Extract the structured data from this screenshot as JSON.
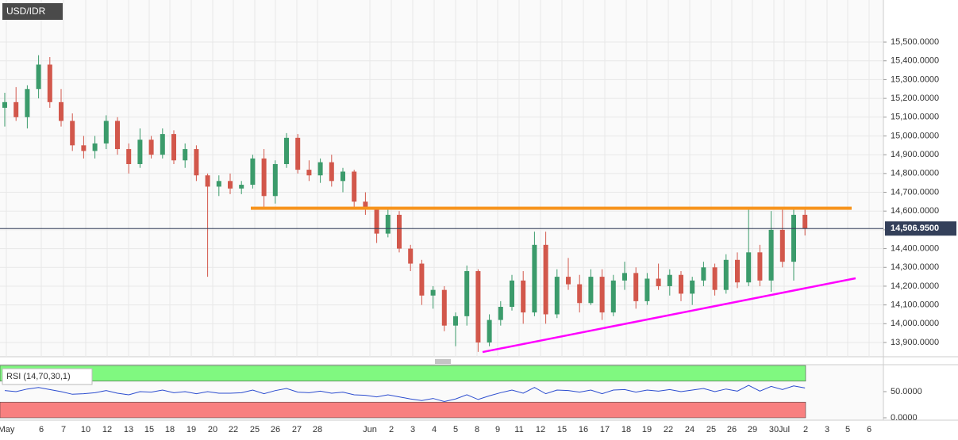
{
  "chart_data": {
    "type": "candlestick",
    "title": "USD/IDR",
    "open": [
      15150,
      15180,
      15100,
      15250,
      15380,
      15180,
      15080,
      14950,
      14920,
      14960,
      15080,
      14930,
      14850,
      14980,
      14900,
      15010,
      14870,
      14930,
      14790,
      14730,
      14760,
      14720,
      14740,
      14880,
      14680,
      14850,
      14990,
      14820,
      14790,
      14860,
      14760,
      14810,
      14650,
      14610,
      14480,
      14580,
      14400,
      14320,
      14150,
      14180,
      13990,
      14040,
      14280,
      13900,
      14020,
      14090,
      14230,
      14060,
      14420,
      14050,
      14250,
      14210,
      14110,
      14250,
      14060,
      14230,
      14270,
      14120,
      14240,
      14200,
      14260,
      14160,
      14230,
      14300,
      14180,
      14340,
      14220,
      14380,
      14230,
      14500,
      14330,
      14580
    ],
    "high": [
      15230,
      15260,
      15270,
      15430,
      15420,
      15250,
      15120,
      15000,
      15000,
      15110,
      15100,
      14960,
      15040,
      15000,
      15040,
      15030,
      14960,
      14950,
      14800,
      14790,
      14800,
      14760,
      14900,
      14930,
      14870,
      15015,
      15010,
      14870,
      14880,
      14900,
      14830,
      14820,
      14700,
      14620,
      14610,
      14600,
      14420,
      14340,
      14200,
      14200,
      14060,
      14310,
      14290,
      14050,
      14120,
      14260,
      14280,
      14490,
      14490,
      14290,
      14350,
      14260,
      14290,
      14290,
      14260,
      14330,
      14300,
      14270,
      14320,
      14290,
      14280,
      14250,
      14330,
      14320,
      14370,
      14380,
      14620,
      14420,
      14600,
      14620,
      14610,
      14610
    ],
    "low": [
      15050,
      15080,
      15040,
      15200,
      15150,
      15050,
      14920,
      14880,
      14880,
      14930,
      14900,
      14800,
      14830,
      14880,
      14880,
      14850,
      14830,
      14760,
      14250,
      14680,
      14690,
      14690,
      14720,
      14620,
      14640,
      14830,
      14800,
      14760,
      14750,
      14730,
      14700,
      14620,
      14580,
      14430,
      14460,
      14380,
      14280,
      14100,
      14080,
      13960,
      13880,
      13990,
      13850,
      13880,
      13990,
      14070,
      14000,
      14040,
      14000,
      14030,
      14180,
      14060,
      14100,
      14020,
      14040,
      14180,
      14080,
      14100,
      14180,
      14150,
      14120,
      14100,
      14200,
      14150,
      14160,
      14190,
      14200,
      14200,
      14170,
      14300,
      14230,
      14470
    ],
    "close": [
      15180,
      15100,
      15250,
      15380,
      15180,
      15080,
      14950,
      14920,
      14960,
      15080,
      14930,
      14850,
      14980,
      14900,
      15010,
      14870,
      14930,
      14790,
      14730,
      14760,
      14720,
      14740,
      14880,
      14680,
      14850,
      14990,
      14820,
      14790,
      14860,
      14760,
      14810,
      14650,
      14610,
      14480,
      14580,
      14400,
      14320,
      14150,
      14180,
      13990,
      14040,
      14280,
      13900,
      14020,
      14090,
      14230,
      14060,
      14420,
      14050,
      14250,
      14210,
      14110,
      14250,
      14060,
      14230,
      14270,
      14120,
      14240,
      14200,
      14260,
      14160,
      14230,
      14300,
      14180,
      14340,
      14220,
      14380,
      14230,
      14500,
      14330,
      14580,
      14506.95
    ],
    "up_color": "#3b9b6b",
    "down_color": "#d2574b",
    "ylim": [
      13824,
      15724
    ],
    "yticks": [
      {
        "value": 13900,
        "label": "13,900.0000"
      },
      {
        "value": 14000,
        "label": "14,000.0000"
      },
      {
        "value": 14100,
        "label": "14,100.0000"
      },
      {
        "value": 14200,
        "label": "14,200.0000"
      },
      {
        "value": 14300,
        "label": "14,300.0000"
      },
      {
        "value": 14400,
        "label": "14,400.0000"
      },
      {
        "value": 14500,
        "label": "14,500.0000"
      },
      {
        "value": 14600,
        "label": "14,600.0000"
      },
      {
        "value": 14700,
        "label": "14,700.0000"
      },
      {
        "value": 14800,
        "label": "14,800.0000"
      },
      {
        "value": 14900,
        "label": "14,900.0000"
      },
      {
        "value": 15000,
        "label": "15,000.0000"
      },
      {
        "value": 15100,
        "label": "15,100.0000"
      },
      {
        "value": 15200,
        "label": "15,200.0000"
      },
      {
        "value": 15300,
        "label": "15,300.0000"
      },
      {
        "value": 15400,
        "label": "15,400.0000"
      },
      {
        "value": 15500,
        "label": "15,500.0000"
      }
    ],
    "x_labels": [
      "May",
      "6",
      "7",
      "10",
      "12",
      "13",
      "15",
      "18",
      "19",
      "20",
      "22",
      "25",
      "26",
      "27",
      "28",
      "Jun",
      "2",
      "3",
      "4",
      "5",
      "8",
      "9",
      "11",
      "12",
      "15",
      "16",
      "17",
      "18",
      "19",
      "22",
      "24",
      "25",
      "26",
      "29",
      "30",
      "Jul",
      "2",
      "3",
      "5",
      "6"
    ],
    "last_price": {
      "value": 14506.95,
      "label": "14,506.9500"
    },
    "lines": [
      {
        "color": "#f7941d",
        "values": [
          14615,
          14615
        ]
      },
      {
        "color": "#ff00ff",
        "values": [
          13849,
          14242
        ]
      }
    ],
    "rsi": {
      "label": "RSI (14,70,30,1)",
      "color": "#2b4ccf",
      "values": [
        52,
        50,
        55,
        58,
        54,
        50,
        45,
        46,
        48,
        52,
        47,
        44,
        50,
        49,
        53,
        48,
        50,
        46,
        50,
        47,
        47,
        48,
        53,
        46,
        52,
        56,
        49,
        48,
        51,
        47,
        49,
        44,
        43,
        40,
        44,
        40,
        36,
        33,
        37,
        31,
        36,
        44,
        35,
        42,
        48,
        53,
        47,
        58,
        46,
        53,
        52,
        49,
        53,
        46,
        53,
        54,
        49,
        53,
        51,
        54,
        50,
        53,
        56,
        50,
        55,
        51,
        62,
        51,
        60,
        54,
        61,
        57
      ],
      "ylim": [
        0,
        100
      ],
      "yticks": [
        {
          "value": 50,
          "label": "50.0000"
        },
        {
          "value": 0,
          "label": "0.0000"
        }
      ],
      "upper": 70,
      "lower": 30,
      "upper_color": "#80f880",
      "lower_color": "#f88080"
    }
  }
}
